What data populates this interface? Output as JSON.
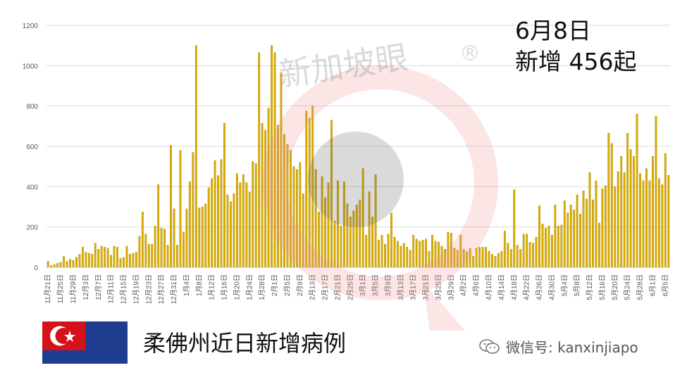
{
  "header": {
    "date": "6月8日",
    "new_cases_text": "新增 456起"
  },
  "caption": "柔佛州近日新增病例",
  "wechat": {
    "text": "微信号: kanxinjiapo",
    "icon": "wechat-icon"
  },
  "watermark": {
    "text": "新加坡眼",
    "mark": "®"
  },
  "flag": {
    "name": "johor-flag",
    "colors": {
      "blue": "#1e3d8f",
      "red": "#d5121a",
      "white": "#ffffff"
    }
  },
  "colors": {
    "bar": "#d9ad00",
    "bar_edge": "#b38a00",
    "grid": "#d9d9d9"
  },
  "chart_data": {
    "type": "bar",
    "title": "",
    "xlabel": "",
    "ylabel": "",
    "ylim": [
      0,
      1200
    ],
    "yticks": [
      0,
      200,
      400,
      600,
      800,
      1000,
      1200
    ],
    "grid": true,
    "start_date": "11月21日",
    "x_tick_labels": [
      "11月21日",
      "11月25日",
      "11月29日",
      "12月3日",
      "12月7日",
      "12月11日",
      "12月15日",
      "12月19日",
      "12月23日",
      "12月27日",
      "12月31日",
      "1月4日",
      "1月8日",
      "1月12日",
      "1月16日",
      "1月20日",
      "1月24日",
      "1月28日",
      "2月1日",
      "2月5日",
      "2月9日",
      "2月13日",
      "2月17日",
      "2月21日",
      "2月25日",
      "3月1日",
      "3月5日",
      "3月9日",
      "3月13日",
      "3月17日",
      "3月21日",
      "3月25日",
      "3月29日",
      "4月2日",
      "4月6日",
      "4月10日",
      "4月14日",
      "4月18日",
      "4月22日",
      "4月26日",
      "4月30日",
      "5月4日",
      "5月8日",
      "5月12日",
      "5月16日",
      "5月20日",
      "5月24日",
      "5月28日",
      "6月1日",
      "6月5日"
    ],
    "values": [
      30,
      10,
      15,
      20,
      25,
      55,
      30,
      40,
      35,
      50,
      65,
      100,
      75,
      70,
      65,
      120,
      90,
      105,
      100,
      95,
      60,
      105,
      100,
      45,
      50,
      105,
      65,
      70,
      75,
      155,
      275,
      165,
      115,
      115,
      205,
      410,
      195,
      190,
      110,
      605,
      290,
      110,
      580,
      175,
      290,
      425,
      570,
      1100,
      295,
      300,
      315,
      395,
      440,
      530,
      455,
      535,
      715,
      360,
      325,
      365,
      465,
      420,
      460,
      420,
      375,
      525,
      515,
      1065,
      715,
      680,
      790,
      1100,
      1065,
      705,
      965,
      660,
      610,
      580,
      500,
      485,
      520,
      365,
      775,
      740,
      800,
      485,
      275,
      450,
      345,
      420,
      730,
      230,
      430,
      205,
      425,
      315,
      250,
      280,
      310,
      335,
      490,
      160,
      375,
      250,
      460,
      135,
      160,
      115,
      165,
      270,
      150,
      130,
      105,
      120,
      100,
      85,
      160,
      140,
      130,
      135,
      140,
      80,
      160,
      130,
      125,
      105,
      90,
      175,
      170,
      95,
      85,
      160,
      90,
      80,
      95,
      55,
      95,
      100,
      100,
      100,
      80,
      65,
      55,
      70,
      80,
      180,
      120,
      90,
      385,
      110,
      90,
      165,
      165,
      125,
      120,
      150,
      305,
      215,
      195,
      205,
      160,
      310,
      205,
      210,
      330,
      270,
      310,
      285,
      360,
      265,
      380,
      340,
      470,
      335,
      430,
      220,
      390,
      405,
      665,
      615,
      400,
      475,
      550,
      470,
      665,
      585,
      550,
      760,
      465,
      430,
      490,
      430,
      550,
      750,
      440,
      410,
      565,
      456
    ]
  }
}
